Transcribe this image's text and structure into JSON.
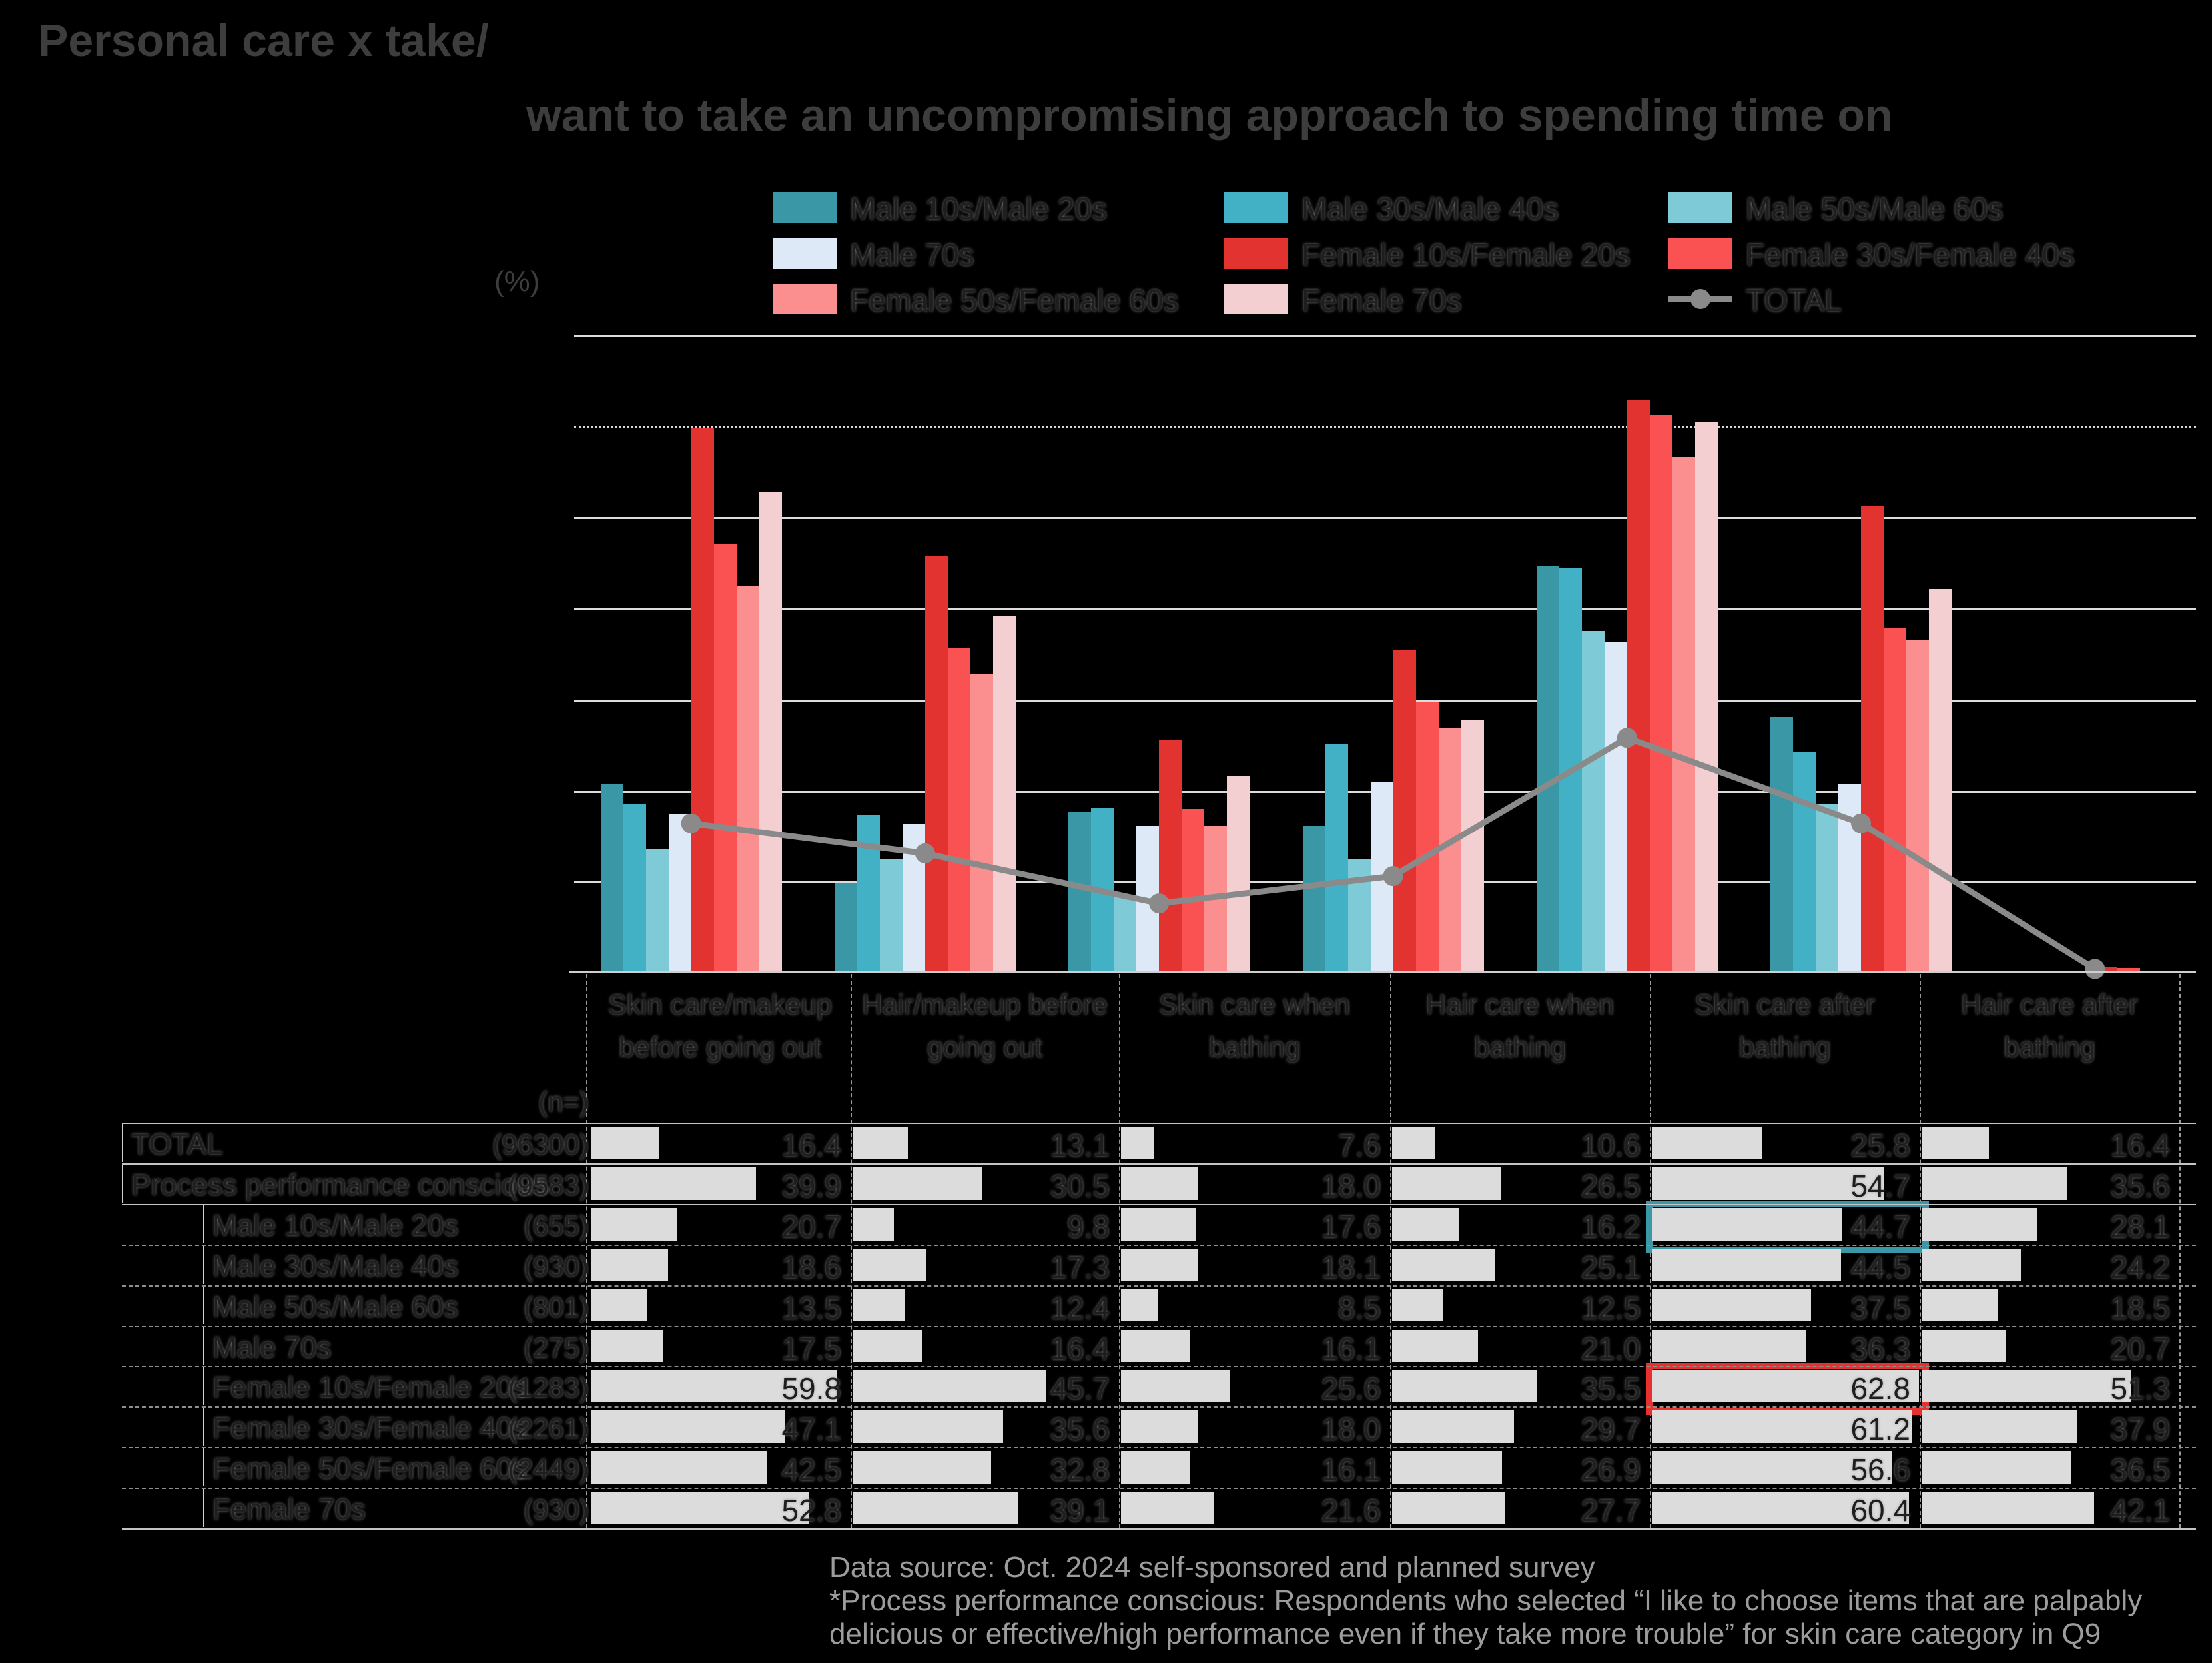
{
  "title": {
    "line1": "Personal care x take/",
    "line2": "want to take an uncompromising approach to spending time on"
  },
  "percent_label": "(%)",
  "legend": {
    "items": [
      {
        "label": "Male 10s/Male 20s",
        "color": "#3A97A6",
        "type": "swatch"
      },
      {
        "label": "Male 30s/Male 40s",
        "color": "#43B1C5",
        "type": "swatch"
      },
      {
        "label": "Male 50s/Male 60s",
        "color": "#7FCAD7",
        "type": "swatch"
      },
      {
        "label": "Male 70s",
        "color": "#DDE9F6",
        "type": "swatch"
      },
      {
        "label": "Female 10s/Female 20s",
        "color": "#E23330",
        "type": "swatch"
      },
      {
        "label": "Female 30s/Female 40s",
        "color": "#FA5252",
        "type": "swatch"
      },
      {
        "label": "Female 50s/Female 60s",
        "color": "#FB8F8F",
        "type": "swatch"
      },
      {
        "label": "Female 70s",
        "color": "#F4CFD2",
        "type": "swatch"
      },
      {
        "label": "TOTAL",
        "color": "#8A8A8A",
        "type": "line"
      }
    ]
  },
  "chart_data": {
    "type": "bar",
    "subtype": "grouped bars with overlay line",
    "unit": "%",
    "ylim": [
      0,
      70
    ],
    "gridline_step": 10,
    "dotted_gridline_level": 60,
    "grid": "on",
    "legend_position": "top",
    "categories": [
      "Skin care/makeup before going out",
      "Hair/makeup before going out",
      "Skin care when bathing",
      "Hair care when bathing",
      "Skin care after bathing",
      "Hair care after bathing"
    ],
    "series": [
      {
        "name": "Male 10s/Male 20s",
        "color": "#3A97A6",
        "values": [
          20.7,
          9.8,
          17.6,
          16.2,
          44.7,
          28.1
        ]
      },
      {
        "name": "Male 30s/Male 40s",
        "color": "#43B1C5",
        "values": [
          18.6,
          17.3,
          18.1,
          25.1,
          44.5,
          24.2
        ]
      },
      {
        "name": "Male 50s/Male 60s",
        "color": "#7FCAD7",
        "values": [
          13.5,
          12.4,
          8.5,
          12.5,
          37.5,
          18.5
        ]
      },
      {
        "name": "Male 70s",
        "color": "#DDE9F6",
        "values": [
          17.5,
          16.4,
          16.1,
          21.0,
          36.3,
          20.7
        ]
      },
      {
        "name": "Female 10s/Female 20s",
        "color": "#E23330",
        "values": [
          59.8,
          45.7,
          25.6,
          35.5,
          62.8,
          51.3
        ]
      },
      {
        "name": "Female 30s/Female 40s",
        "color": "#FA5252",
        "values": [
          47.1,
          35.6,
          18.0,
          29.7,
          61.2,
          37.9
        ]
      },
      {
        "name": "Female 50s/Female 60s",
        "color": "#FB8F8F",
        "values": [
          42.5,
          32.8,
          16.1,
          26.9,
          56.6,
          36.5
        ]
      },
      {
        "name": "Female 70s",
        "color": "#F4CFD2",
        "values": [
          52.8,
          39.1,
          21.6,
          27.7,
          60.4,
          42.1
        ]
      }
    ],
    "line_series": {
      "name": "TOTAL",
      "color": "#8A8A8A",
      "values": [
        16.4,
        13.1,
        7.6,
        10.6,
        25.8,
        16.4
      ]
    },
    "partial_seventh_slot": {
      "line_value": 0.4,
      "bar_values": [
        0,
        0,
        0,
        0,
        0.6,
        0.5,
        0,
        0
      ]
    }
  },
  "table": {
    "n_header": "(n=)",
    "bar_scale_max": 62.8,
    "rows": [
      {
        "label": "TOTAL",
        "n": "(96300)",
        "indent": false,
        "values": [
          16.4,
          13.1,
          7.6,
          10.6,
          25.8,
          16.4
        ]
      },
      {
        "label": "Process performance conscious",
        "n": "(9583)",
        "indent": false,
        "values": [
          39.9,
          30.5,
          18.0,
          26.5,
          54.7,
          35.6
        ]
      },
      {
        "label": "Male 10s/Male 20s",
        "n": "(655)",
        "indent": true,
        "values": [
          20.7,
          9.8,
          17.6,
          16.2,
          44.7,
          28.1
        ],
        "highlight": {
          "col": 4,
          "color": "#3A97A6"
        }
      },
      {
        "label": "Male 30s/Male 40s",
        "n": "(930)",
        "indent": true,
        "values": [
          18.6,
          17.3,
          18.1,
          25.1,
          44.5,
          24.2
        ]
      },
      {
        "label": "Male 50s/Male 60s",
        "n": "(801)",
        "indent": true,
        "values": [
          13.5,
          12.4,
          8.5,
          12.5,
          37.5,
          18.5
        ]
      },
      {
        "label": "Male 70s",
        "n": "(275)",
        "indent": true,
        "values": [
          17.5,
          16.4,
          16.1,
          21.0,
          36.3,
          20.7
        ]
      },
      {
        "label": "Female 10s/Female 20s",
        "n": "(1283)",
        "indent": true,
        "values": [
          59.8,
          45.7,
          25.6,
          35.5,
          62.8,
          51.3
        ],
        "highlight": {
          "col": 4,
          "color": "#E6312F"
        }
      },
      {
        "label": "Female 30s/Female 40s",
        "n": "(2261)",
        "indent": true,
        "values": [
          47.1,
          35.6,
          18.0,
          29.7,
          61.2,
          37.9
        ]
      },
      {
        "label": "Female 50s/Female 60s",
        "n": "(2449)",
        "indent": true,
        "values": [
          42.5,
          32.8,
          16.1,
          26.9,
          56.6,
          36.5
        ]
      },
      {
        "label": "Female 70s",
        "n": "(930)",
        "indent": true,
        "values": [
          52.8,
          39.1,
          21.6,
          27.7,
          60.4,
          42.1
        ]
      }
    ]
  },
  "footnotes": [
    "Data source: Oct. 2024 self-sponsored and planned survey",
    "*Process performance conscious: Respondents who selected “I like to choose items that are palpably",
    "delicious or effective/high performance even if they take more trouble” for skin care category in Q9"
  ],
  "colors": {
    "background": "#000000",
    "title": "#3d3d3d",
    "gridline": "#dcdcdc",
    "axis": "#cfcfcf",
    "table_bar": "#dcdcdc",
    "footer": "#9c9c9c",
    "highlight_teal": "#3A97A6",
    "highlight_red": "#E6312F",
    "total_line": "#8A8A8A"
  }
}
